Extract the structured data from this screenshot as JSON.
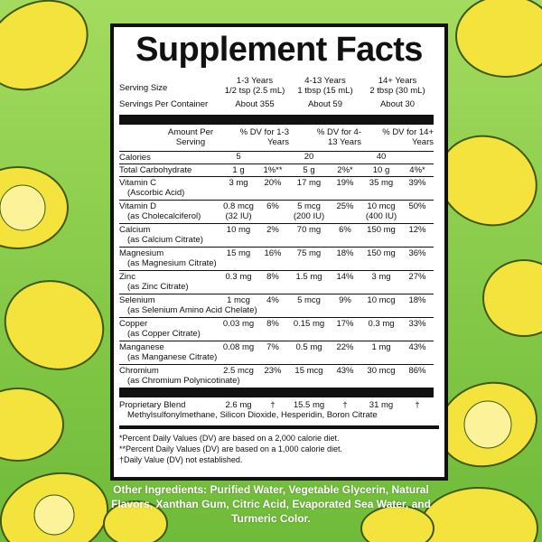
{
  "title": "Supplement Facts",
  "serving_size": {
    "label": "Serving Size",
    "columns": [
      {
        "age": "1-3 Years",
        "amount": "1/2 tsp (2.5 mL)"
      },
      {
        "age": "4-13 Years",
        "amount": "1 tbsp (15 mL)"
      },
      {
        "age": "14+ Years",
        "amount": "2 tbsp (30 mL)"
      }
    ]
  },
  "servings_per_container": {
    "label": "Servings Per Container",
    "values": [
      "About 355",
      "About 59",
      "About 30"
    ]
  },
  "table": {
    "header": [
      "Amount Per Serving",
      "% DV for 1-3 Years",
      "% DV for 4-13 Years",
      "% DV for 14+ Years"
    ],
    "calories": {
      "name": "Calories",
      "values": [
        5,
        20,
        40
      ]
    },
    "rows": [
      {
        "name": "Total Carbohydrate",
        "values": [
          "1 g",
          "1%**",
          "5 g",
          "2%*",
          "10 g",
          "4%*"
        ]
      },
      {
        "name": "Vitamin C",
        "source": "(Ascorbic Acid)",
        "values": [
          "3 mg",
          "20%",
          "17 mg",
          "19%",
          "35 mg",
          "39%"
        ]
      },
      {
        "name": "Vitamin D",
        "source": "(as Cholecalciferol)",
        "values": [
          "0.8 mcg",
          "6%",
          "5 mcg",
          "25%",
          "10 mcg",
          "50%"
        ],
        "iu": [
          "(32 IU)",
          "(200 IU)",
          "(400 IU)"
        ]
      },
      {
        "name": "Calcium",
        "source": "(as Calcium Citrate)",
        "values": [
          "10 mg",
          "2%",
          "70 mg",
          "6%",
          "150 mg",
          "12%"
        ]
      },
      {
        "name": "Magnesium",
        "source": "(as Magnesium Citrate)",
        "values": [
          "15 mg",
          "16%",
          "75 mg",
          "18%",
          "150 mg",
          "36%"
        ]
      },
      {
        "name": "Zinc",
        "source": "(as Zinc Citrate)",
        "values": [
          "0.3 mg",
          "8%",
          "1.5 mg",
          "14%",
          "3 mg",
          "27%"
        ]
      },
      {
        "name": "Selenium",
        "source": "(as Selenium Amino Acid Chelate)",
        "values": [
          "1 mcg",
          "4%",
          "5 mcg",
          "9%",
          "10 mcg",
          "18%"
        ]
      },
      {
        "name": "Copper",
        "source": "(as Copper Citrate)",
        "values": [
          "0.03 mg",
          "8%",
          "0.15 mg",
          "17%",
          "0.3 mg",
          "33%"
        ]
      },
      {
        "name": "Manganese",
        "source": "(as Manganese Citrate)",
        "values": [
          "0.08 mg",
          "7%",
          "0.5 mg",
          "22%",
          "1 mg",
          "43%"
        ]
      },
      {
        "name": "Chromium",
        "source": "(as Chromium Polynicotinate)",
        "values": [
          "2.5 mcg",
          "23%",
          "15 mcg",
          "43%",
          "30 mcg",
          "86%"
        ]
      }
    ],
    "blend": {
      "name": "Proprietary Blend",
      "values": [
        "2.6 mg",
        "†",
        "15.5 mg",
        "†",
        "31 mg",
        "†"
      ],
      "ingredients": "Methylsulfonylmethane, Silicon Dioxide, Hesperidin, Boron Citrate"
    }
  },
  "footnotes": [
    "*Percent Daily Values (DV) are based on a 2,000 calorie diet.",
    "**Percent Daily Values (DV) are based on a 1,000 calorie diet.",
    "†Daily Value (DV) not established."
  ],
  "other_ingredients": "Other Ingredients: Purified Water, Vegetable Glycerin, Natural Flavors, Xanthan Gum, Citric Acid, Evaporated Sea Water, and Turmeric Color."
}
